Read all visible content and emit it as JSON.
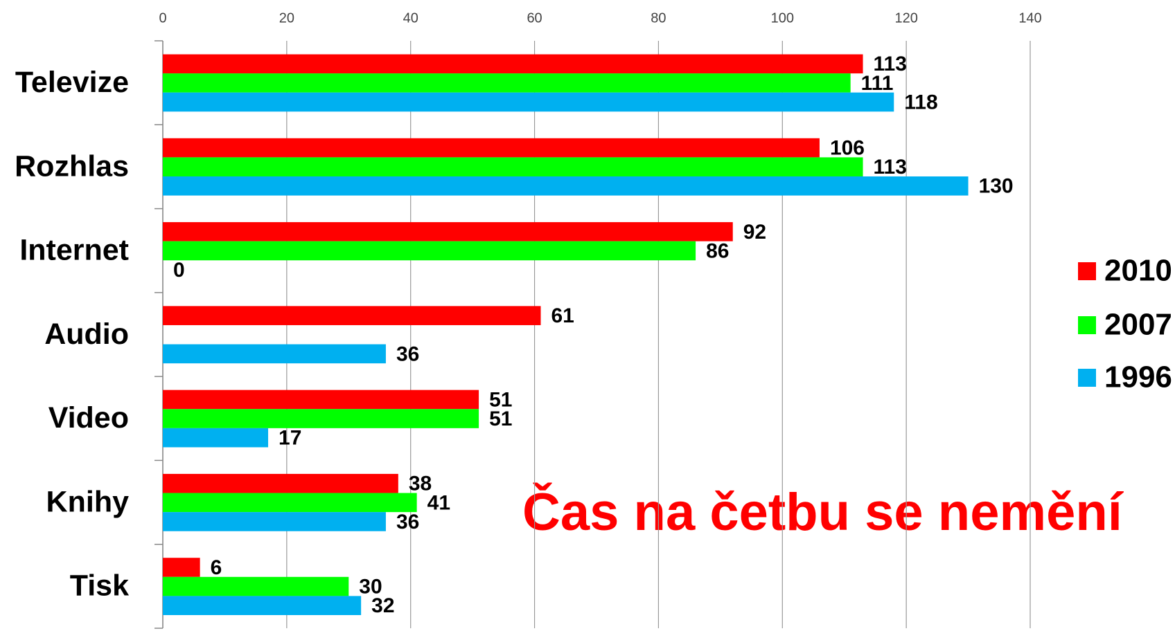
{
  "chart_data": {
    "type": "bar",
    "orientation": "horizontal",
    "categories": [
      "Televize",
      "Rozhlas",
      "Internet",
      "Audio",
      "Video",
      "Knihy",
      "Tisk"
    ],
    "series": [
      {
        "name": "2010",
        "color": "#ff0000",
        "values": [
          113,
          106,
          92,
          61,
          51,
          38,
          6
        ]
      },
      {
        "name": "2007",
        "color": "#00ff00",
        "values": [
          111,
          113,
          86,
          null,
          51,
          41,
          30
        ]
      },
      {
        "name": "1996",
        "color": "#00b0f0",
        "values": [
          118,
          130,
          0,
          36,
          17,
          36,
          32
        ]
      }
    ],
    "xlim": [
      0,
      140
    ],
    "xticks": [
      0,
      20,
      40,
      60,
      80,
      100,
      120,
      140
    ],
    "grid": true,
    "legend": "right",
    "annotation": "Čas na četbu se nemění"
  }
}
